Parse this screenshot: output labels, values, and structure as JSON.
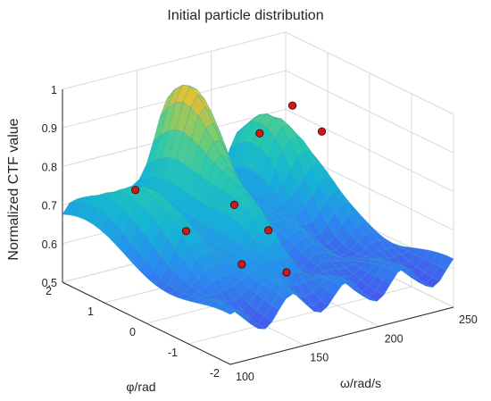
{
  "chart_data": {
    "type": "surface",
    "title": "Initial particle distribution",
    "xlabel": "ω/rad/s",
    "ylabel": "φ/rad",
    "zlabel": "Normalized CTF value",
    "xlim": [
      100,
      250
    ],
    "ylim": [
      -2,
      2
    ],
    "zlim": [
      0.5,
      1
    ],
    "x_ticks": [
      "100",
      "150",
      "200",
      "250"
    ],
    "y_ticks": [
      "-2",
      "-1",
      "0",
      "1",
      "2"
    ],
    "z_ticks": [
      "0.5",
      "0.6",
      "0.7",
      "0.8",
      "0.9",
      "1"
    ],
    "grid": true,
    "colormap": "parula",
    "particle_color": "#cc1a1a",
    "particles": [
      {
        "x": 118,
        "y": 0.9,
        "z": 0.78
      },
      {
        "x": 138,
        "y": 0.4,
        "z": 0.68
      },
      {
        "x": 176,
        "y": 0.6,
        "z": 0.7
      },
      {
        "x": 150,
        "y": -0.5,
        "z": 0.63
      },
      {
        "x": 182,
        "y": 0.0,
        "z": 0.66
      },
      {
        "x": 166,
        "y": -1.0,
        "z": 0.62
      },
      {
        "x": 210,
        "y": 1.2,
        "z": 0.82
      },
      {
        "x": 232,
        "y": 1.2,
        "z": 0.87
      },
      {
        "x": 232,
        "y": 0.5,
        "z": 0.84
      }
    ]
  }
}
